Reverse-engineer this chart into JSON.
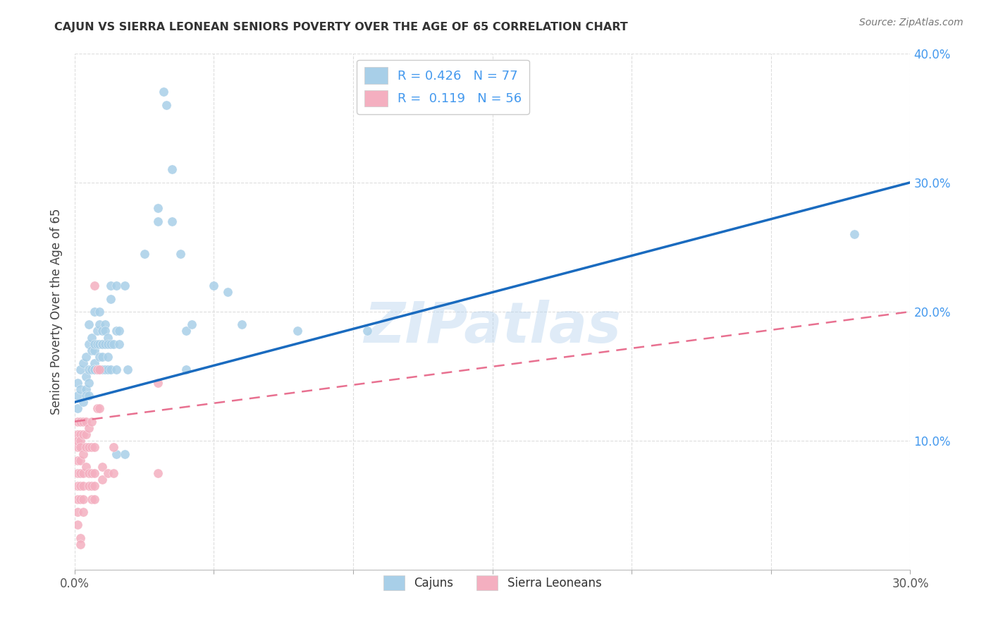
{
  "title": "CAJUN VS SIERRA LEONEAN SENIORS POVERTY OVER THE AGE OF 65 CORRELATION CHART",
  "source": "Source: ZipAtlas.com",
  "ylabel": "Seniors Poverty Over the Age of 65",
  "xlim": [
    0,
    0.3
  ],
  "ylim": [
    0,
    0.4
  ],
  "background_color": "#ffffff",
  "grid_color": "#dddddd",
  "watermark": "ZIPatlas",
  "legend_cajun_R": "0.426",
  "legend_cajun_N": "77",
  "legend_sierra_R": "0.119",
  "legend_sierra_N": "56",
  "cajun_color": "#a8cfe8",
  "sierra_color": "#f4afc0",
  "cajun_line_color": "#1a6bbf",
  "sierra_line_color": "#e87090",
  "tick_color": "#4499ee",
  "title_color": "#333333",
  "cajun_scatter": [
    [
      0.001,
      0.135
    ],
    [
      0.001,
      0.145
    ],
    [
      0.001,
      0.125
    ],
    [
      0.002,
      0.155
    ],
    [
      0.002,
      0.14
    ],
    [
      0.003,
      0.13
    ],
    [
      0.003,
      0.16
    ],
    [
      0.004,
      0.14
    ],
    [
      0.004,
      0.135
    ],
    [
      0.004,
      0.165
    ],
    [
      0.004,
      0.15
    ],
    [
      0.005,
      0.145
    ],
    [
      0.005,
      0.135
    ],
    [
      0.005,
      0.155
    ],
    [
      0.005,
      0.19
    ],
    [
      0.005,
      0.175
    ],
    [
      0.006,
      0.17
    ],
    [
      0.006,
      0.18
    ],
    [
      0.006,
      0.155
    ],
    [
      0.007,
      0.16
    ],
    [
      0.007,
      0.155
    ],
    [
      0.007,
      0.17
    ],
    [
      0.007,
      0.2
    ],
    [
      0.007,
      0.175
    ],
    [
      0.007,
      0.155
    ],
    [
      0.008,
      0.175
    ],
    [
      0.008,
      0.185
    ],
    [
      0.008,
      0.155
    ],
    [
      0.009,
      0.165
    ],
    [
      0.009,
      0.2
    ],
    [
      0.009,
      0.175
    ],
    [
      0.009,
      0.19
    ],
    [
      0.009,
      0.155
    ],
    [
      0.01,
      0.175
    ],
    [
      0.01,
      0.155
    ],
    [
      0.01,
      0.185
    ],
    [
      0.01,
      0.175
    ],
    [
      0.01,
      0.165
    ],
    [
      0.011,
      0.19
    ],
    [
      0.011,
      0.155
    ],
    [
      0.011,
      0.175
    ],
    [
      0.011,
      0.185
    ],
    [
      0.012,
      0.18
    ],
    [
      0.012,
      0.175
    ],
    [
      0.012,
      0.155
    ],
    [
      0.012,
      0.165
    ],
    [
      0.013,
      0.175
    ],
    [
      0.013,
      0.21
    ],
    [
      0.013,
      0.22
    ],
    [
      0.013,
      0.155
    ],
    [
      0.014,
      0.175
    ],
    [
      0.015,
      0.185
    ],
    [
      0.015,
      0.22
    ],
    [
      0.015,
      0.155
    ],
    [
      0.015,
      0.09
    ],
    [
      0.016,
      0.175
    ],
    [
      0.016,
      0.185
    ],
    [
      0.018,
      0.22
    ],
    [
      0.018,
      0.09
    ],
    [
      0.019,
      0.155
    ],
    [
      0.025,
      0.245
    ],
    [
      0.03,
      0.27
    ],
    [
      0.03,
      0.28
    ],
    [
      0.032,
      0.37
    ],
    [
      0.033,
      0.36
    ],
    [
      0.035,
      0.31
    ],
    [
      0.035,
      0.27
    ],
    [
      0.038,
      0.245
    ],
    [
      0.04,
      0.155
    ],
    [
      0.04,
      0.185
    ],
    [
      0.042,
      0.19
    ],
    [
      0.05,
      0.22
    ],
    [
      0.055,
      0.215
    ],
    [
      0.06,
      0.19
    ],
    [
      0.08,
      0.185
    ],
    [
      0.105,
      0.185
    ],
    [
      0.28,
      0.26
    ]
  ],
  "sierra_scatter": [
    [
      0.001,
      0.115
    ],
    [
      0.001,
      0.095
    ],
    [
      0.001,
      0.105
    ],
    [
      0.001,
      0.1
    ],
    [
      0.001,
      0.085
    ],
    [
      0.001,
      0.075
    ],
    [
      0.001,
      0.065
    ],
    [
      0.001,
      0.055
    ],
    [
      0.001,
      0.045
    ],
    [
      0.001,
      0.035
    ],
    [
      0.002,
      0.115
    ],
    [
      0.002,
      0.105
    ],
    [
      0.002,
      0.1
    ],
    [
      0.002,
      0.095
    ],
    [
      0.002,
      0.085
    ],
    [
      0.002,
      0.075
    ],
    [
      0.002,
      0.065
    ],
    [
      0.002,
      0.055
    ],
    [
      0.002,
      0.025
    ],
    [
      0.002,
      0.02
    ],
    [
      0.003,
      0.115
    ],
    [
      0.003,
      0.105
    ],
    [
      0.003,
      0.09
    ],
    [
      0.003,
      0.075
    ],
    [
      0.003,
      0.065
    ],
    [
      0.003,
      0.055
    ],
    [
      0.003,
      0.045
    ],
    [
      0.004,
      0.115
    ],
    [
      0.004,
      0.105
    ],
    [
      0.004,
      0.095
    ],
    [
      0.004,
      0.08
    ],
    [
      0.005,
      0.11
    ],
    [
      0.005,
      0.095
    ],
    [
      0.005,
      0.075
    ],
    [
      0.005,
      0.065
    ],
    [
      0.006,
      0.115
    ],
    [
      0.006,
      0.095
    ],
    [
      0.006,
      0.075
    ],
    [
      0.006,
      0.065
    ],
    [
      0.006,
      0.055
    ],
    [
      0.007,
      0.095
    ],
    [
      0.007,
      0.075
    ],
    [
      0.007,
      0.065
    ],
    [
      0.007,
      0.055
    ],
    [
      0.007,
      0.22
    ],
    [
      0.008,
      0.155
    ],
    [
      0.008,
      0.125
    ],
    [
      0.009,
      0.125
    ],
    [
      0.009,
      0.155
    ],
    [
      0.01,
      0.08
    ],
    [
      0.01,
      0.07
    ],
    [
      0.012,
      0.075
    ],
    [
      0.014,
      0.095
    ],
    [
      0.014,
      0.075
    ],
    [
      0.03,
      0.145
    ],
    [
      0.03,
      0.075
    ]
  ]
}
